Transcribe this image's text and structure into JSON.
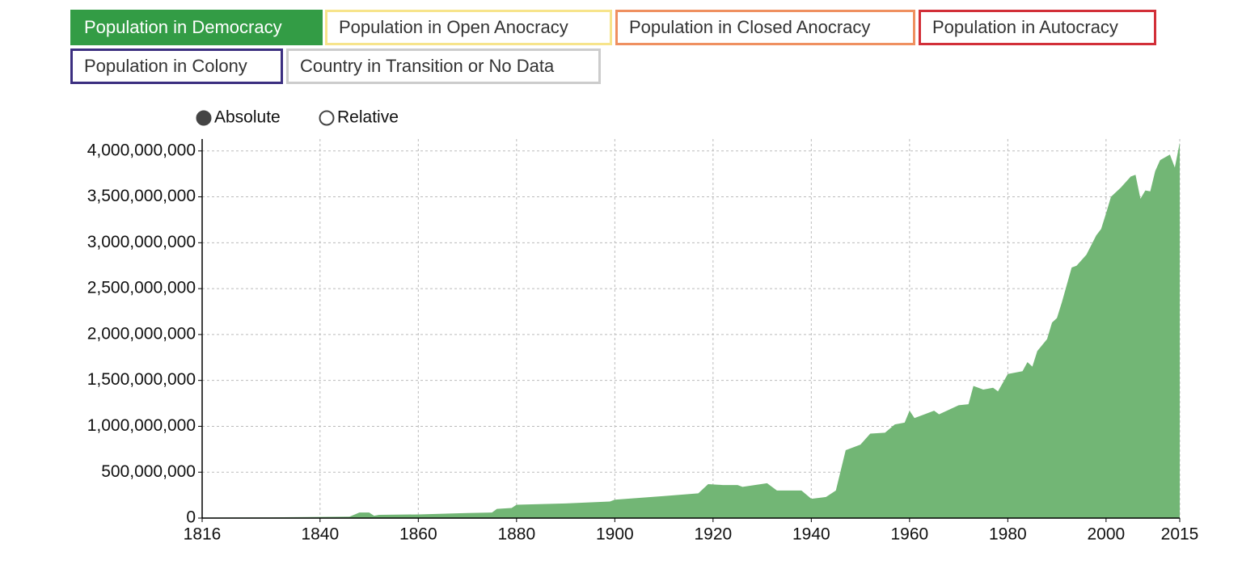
{
  "toggles": [
    {
      "label": "Population in Democracy",
      "color": "#339c45",
      "active": true
    },
    {
      "label": "Population in Open Anocracy",
      "color": "#f7e48b",
      "active": false
    },
    {
      "label": "Population in Closed Anocracy",
      "color": "#ef9060",
      "active": false
    },
    {
      "label": "Population in Autocracy",
      "color": "#d22f38",
      "active": false
    },
    {
      "label": "Population in Colony",
      "color": "#3c2f80",
      "active": false
    },
    {
      "label": "Country in Transition or No Data",
      "color": "#cccccc",
      "active": false
    }
  ],
  "modes": [
    {
      "label": "Absolute",
      "selected": true
    },
    {
      "label": "Relative",
      "selected": false
    }
  ],
  "chart_data": {
    "type": "area",
    "x": [
      1816,
      1830,
      1846,
      1848,
      1850,
      1851,
      1852,
      1860,
      1870,
      1875,
      1876,
      1879,
      1880,
      1890,
      1899,
      1900,
      1910,
      1917,
      1919,
      1922,
      1925,
      1926,
      1931,
      1933,
      1938,
      1940,
      1943,
      1945,
      1947,
      1950,
      1952,
      1955,
      1957,
      1959,
      1960,
      1961,
      1965,
      1966,
      1970,
      1972,
      1973,
      1975,
      1977,
      1978,
      1980,
      1983,
      1984,
      1985,
      1986,
      1988,
      1989,
      1990,
      1991,
      1993,
      1994,
      1996,
      1998,
      1999,
      2000,
      2001,
      2003,
      2005,
      2006,
      2007,
      2008,
      2009,
      2010,
      2011,
      2013,
      2014,
      2015
    ],
    "series": [
      {
        "name": "Population in Democracy",
        "color": "#72b675",
        "values": [
          5000000,
          8000000,
          15000000,
          60000000,
          60000000,
          25000000,
          35000000,
          40000000,
          55000000,
          60000000,
          100000000,
          110000000,
          145000000,
          160000000,
          180000000,
          200000000,
          240000000,
          270000000,
          370000000,
          360000000,
          360000000,
          340000000,
          380000000,
          300000000,
          300000000,
          210000000,
          230000000,
          300000000,
          740000000,
          800000000,
          920000000,
          930000000,
          1020000000,
          1040000000,
          1170000000,
          1090000000,
          1170000000,
          1130000000,
          1230000000,
          1240000000,
          1440000000,
          1400000000,
          1420000000,
          1380000000,
          1570000000,
          1600000000,
          1700000000,
          1650000000,
          1820000000,
          1950000000,
          2130000000,
          2180000000,
          2350000000,
          2730000000,
          2750000000,
          2870000000,
          3080000000,
          3150000000,
          3320000000,
          3500000000,
          3600000000,
          3720000000,
          3740000000,
          3480000000,
          3570000000,
          3560000000,
          3780000000,
          3900000000,
          3960000000,
          3820000000,
          4090000000
        ]
      }
    ],
    "xlim": [
      1816,
      2015
    ],
    "xticks": [
      1816,
      1840,
      1860,
      1880,
      1900,
      1920,
      1940,
      1960,
      1980,
      2000,
      2015
    ],
    "ylim": [
      0,
      4130000000
    ],
    "yticks": [
      {
        "value": 0,
        "label": "0"
      },
      {
        "value": 500000000,
        "label": "500,000,000"
      },
      {
        "value": 1000000000,
        "label": "1,000,000,000"
      },
      {
        "value": 1500000000,
        "label": "1,500,000,000"
      },
      {
        "value": 2000000000,
        "label": "2,000,000,000"
      },
      {
        "value": 2500000000,
        "label": "2,500,000,000"
      },
      {
        "value": 3000000000,
        "label": "3,000,000,000"
      },
      {
        "value": 3500000000,
        "label": "3,500,000,000"
      },
      {
        "value": 4000000000,
        "label": "4,000,000,000"
      }
    ],
    "grid": true
  }
}
